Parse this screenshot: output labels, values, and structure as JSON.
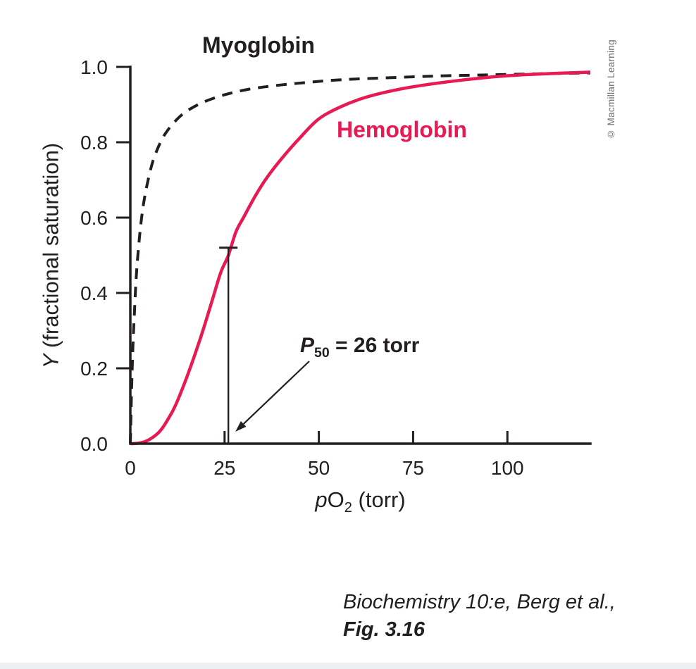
{
  "figure": {
    "credit": "© Macmillan Learning",
    "caption": {
      "line1": "Biochemistry 10:e, Berg et al.,",
      "line2": "Fig. 3.16"
    }
  },
  "chart_data": {
    "type": "line",
    "title": "",
    "grid": false,
    "legend": "inline-labels",
    "colors": {
      "ink": "#231f20",
      "accent_red": "#e81a53",
      "credit_gray": "#6d6e71"
    },
    "x_axis": {
      "label": {
        "italic": "p",
        "main": "O",
        "sub": "2",
        "rest": " (torr)"
      },
      "ticks": [
        0,
        25,
        50,
        75,
        100
      ],
      "range": [
        0,
        122
      ]
    },
    "y_axis": {
      "label": {
        "italic": "Y",
        "rest": " (fractional saturation)"
      },
      "ticks": [
        0.0,
        0.2,
        0.4,
        0.6,
        0.8,
        1.0
      ],
      "range": [
        0,
        1.0
      ]
    },
    "series": [
      {
        "name": "Myoglobin",
        "style": "dashed",
        "color": "#231f20",
        "points": [
          [
            0,
            0
          ],
          [
            0.3,
            0.13
          ],
          [
            0.7,
            0.26
          ],
          [
            1,
            0.33
          ],
          [
            1.5,
            0.43
          ],
          [
            2,
            0.5
          ],
          [
            2.6,
            0.565
          ],
          [
            3.4,
            0.63
          ],
          [
            4.5,
            0.69
          ],
          [
            6,
            0.75
          ],
          [
            8,
            0.8
          ],
          [
            10,
            0.833
          ],
          [
            13,
            0.867
          ],
          [
            16,
            0.889
          ],
          [
            20,
            0.909
          ],
          [
            25,
            0.926
          ],
          [
            31,
            0.94
          ],
          [
            38,
            0.95
          ],
          [
            46,
            0.958
          ],
          [
            56,
            0.966
          ],
          [
            68,
            0.971
          ],
          [
            82,
            0.976
          ],
          [
            96,
            0.979
          ],
          [
            110,
            0.982
          ],
          [
            122,
            0.984
          ]
        ]
      },
      {
        "name": "Hemoglobin",
        "style": "solid",
        "color": "#e81a53",
        "points": [
          [
            0,
            0
          ],
          [
            2,
            0.001
          ],
          [
            4,
            0.006
          ],
          [
            6,
            0.017
          ],
          [
            8,
            0.035
          ],
          [
            10,
            0.065
          ],
          [
            12,
            0.102
          ],
          [
            15,
            0.177
          ],
          [
            18,
            0.262
          ],
          [
            20,
            0.324
          ],
          [
            22,
            0.39
          ],
          [
            24,
            0.455
          ],
          [
            26,
            0.5
          ],
          [
            28,
            0.562
          ],
          [
            30,
            0.6
          ],
          [
            33,
            0.655
          ],
          [
            36,
            0.703
          ],
          [
            40,
            0.755
          ],
          [
            45,
            0.812
          ],
          [
            50,
            0.862
          ],
          [
            56,
            0.895
          ],
          [
            62,
            0.918
          ],
          [
            70,
            0.938
          ],
          [
            78,
            0.952
          ],
          [
            88,
            0.965
          ],
          [
            98,
            0.975
          ],
          [
            108,
            0.981
          ],
          [
            122,
            0.986
          ]
        ]
      }
    ],
    "annotation": {
      "p": "P",
      "sub": "50",
      "rest": " = 26 torr",
      "x": 26,
      "y_top": 0.52
    }
  }
}
